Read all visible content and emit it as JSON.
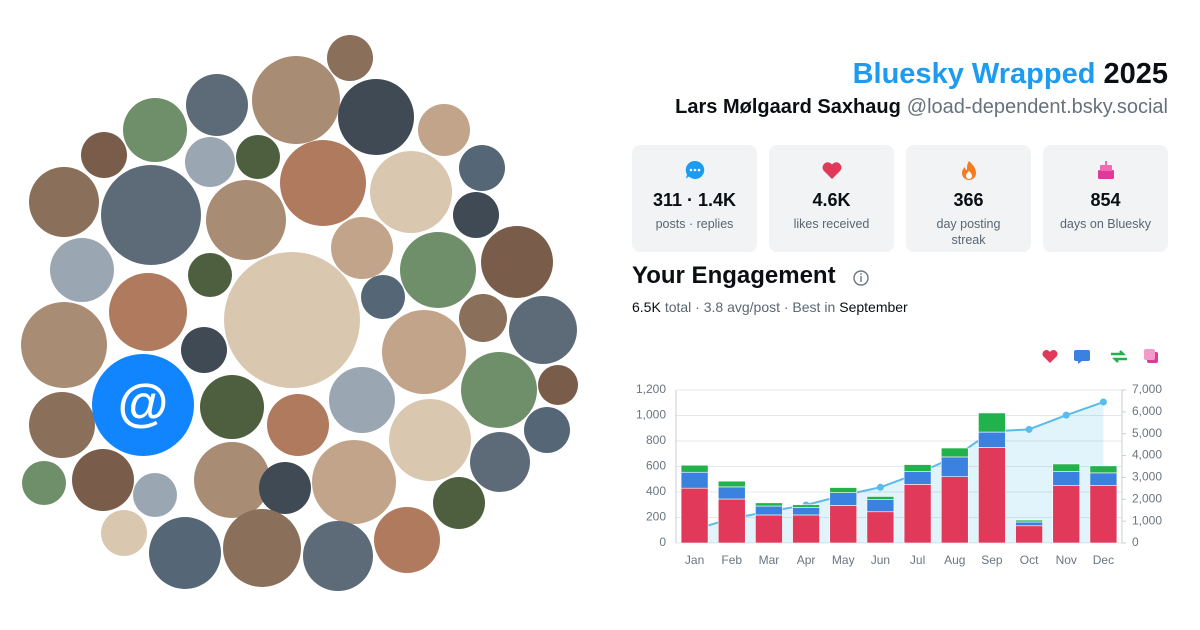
{
  "header": {
    "title_brand": "Bluesky Wrapped",
    "title_year": "2025",
    "name": "Lars Mølgaard Saxhaug",
    "handle": "@load-dependent.bsky.social"
  },
  "stats": [
    {
      "value": "311 · 1.4K",
      "label": "posts · replies"
    },
    {
      "value": "4.6K",
      "label": "likes received"
    },
    {
      "value": "366",
      "label": "day posting streak"
    },
    {
      "value": "854",
      "label": "days on Bluesky"
    }
  ],
  "engagement": {
    "title": "Your Engagement",
    "total": "6.5K",
    "summary": "total · 3.8 avg/post · Best in",
    "best_month": "September"
  },
  "avatar_badge": "@",
  "chart_data": {
    "type": "bar",
    "stacked": true,
    "categories": [
      "Jan",
      "Feb",
      "Mar",
      "Apr",
      "May",
      "Jun",
      "Jul",
      "Aug",
      "Sep",
      "Oct",
      "Nov",
      "Dec"
    ],
    "series": [
      {
        "color": "#e0395a",
        "values": [
          430,
          345,
          220,
          220,
          295,
          245,
          460,
          520,
          750,
          135,
          450,
          450
        ]
      },
      {
        "color": "#3b82e0",
        "values": [
          125,
          95,
          70,
          60,
          100,
          95,
          100,
          155,
          120,
          30,
          110,
          100
        ]
      },
      {
        "color": "#22b24c",
        "values": [
          55,
          45,
          25,
          20,
          40,
          25,
          55,
          70,
          150,
          15,
          60,
          55
        ]
      },
      {
        "type": "line",
        "axis": "y2",
        "color": "#5bbbea",
        "values": [
          620,
          1120,
          1440,
          1740,
          2180,
          2550,
          3180,
          3940,
          5100,
          5200,
          5850,
          6450
        ]
      }
    ],
    "ylim": [
      0,
      1200
    ],
    "yticks": [
      0,
      200,
      400,
      600,
      800,
      {
        "value": 1000,
        "label": "1,000"
      },
      {
        "value": 1200,
        "label": "1,200"
      }
    ],
    "y2lim": [
      0,
      7000
    ],
    "y2ticks": [
      0,
      {
        "value": 1000,
        "label": "1,000"
      },
      {
        "value": 2000,
        "label": "2,000"
      },
      {
        "value": 3000,
        "label": "3,000"
      },
      {
        "value": 4000,
        "label": "4,000"
      },
      {
        "value": 5000,
        "label": "5,000"
      },
      {
        "value": 6000,
        "label": "6,000"
      },
      {
        "value": 7000,
        "label": "7,000"
      }
    ],
    "grid": true
  }
}
